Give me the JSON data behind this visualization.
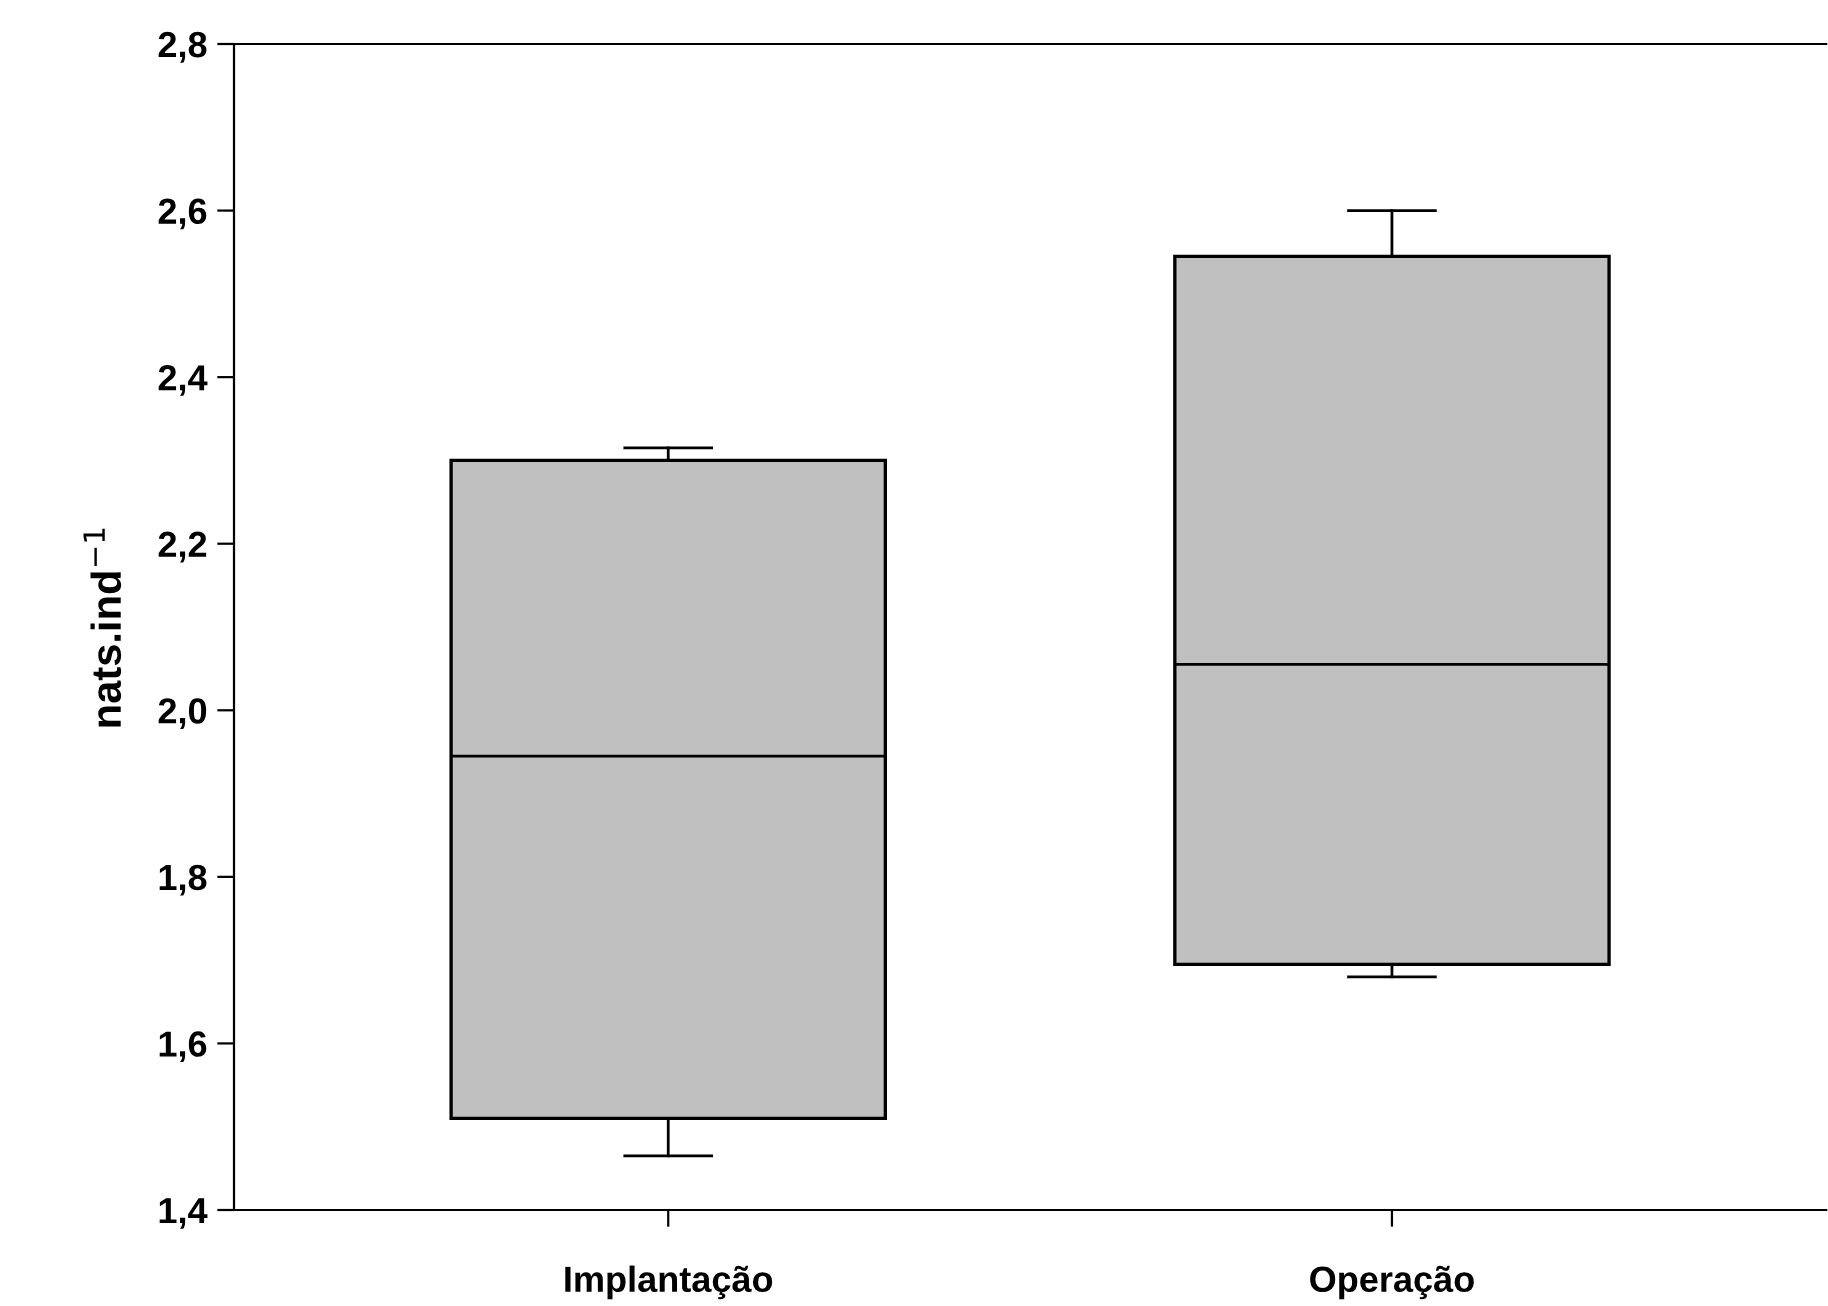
{
  "chart_data": {
    "type": "box",
    "ylabel": "nats.ind$^{−1}$",
    "categories": [
      "Implantação",
      "Operação"
    ],
    "boxes": [
      {
        "low": 1.465,
        "q1": 1.51,
        "median": 1.945,
        "q3": 2.3,
        "high": 2.315
      },
      {
        "low": 1.68,
        "q1": 1.695,
        "median": 2.055,
        "q3": 2.545,
        "high": 2.6
      }
    ],
    "color": "#c0c0c0",
    "ylim": [
      1.4,
      2.8
    ],
    "yticks": [
      {
        "value": 1.4,
        "label": "1,4"
      },
      {
        "value": 1.6,
        "label": "1,6"
      },
      {
        "value": 1.8,
        "label": "1,8"
      },
      {
        "value": 2.0,
        "label": "2,0"
      },
      {
        "value": 2.2,
        "label": "2,2"
      },
      {
        "value": 2.4,
        "label": "2,4"
      },
      {
        "value": 2.6,
        "label": "2,6"
      },
      {
        "value": 2.8,
        "label": "2,8"
      }
    ],
    "grid": false,
    "legend": false
  }
}
